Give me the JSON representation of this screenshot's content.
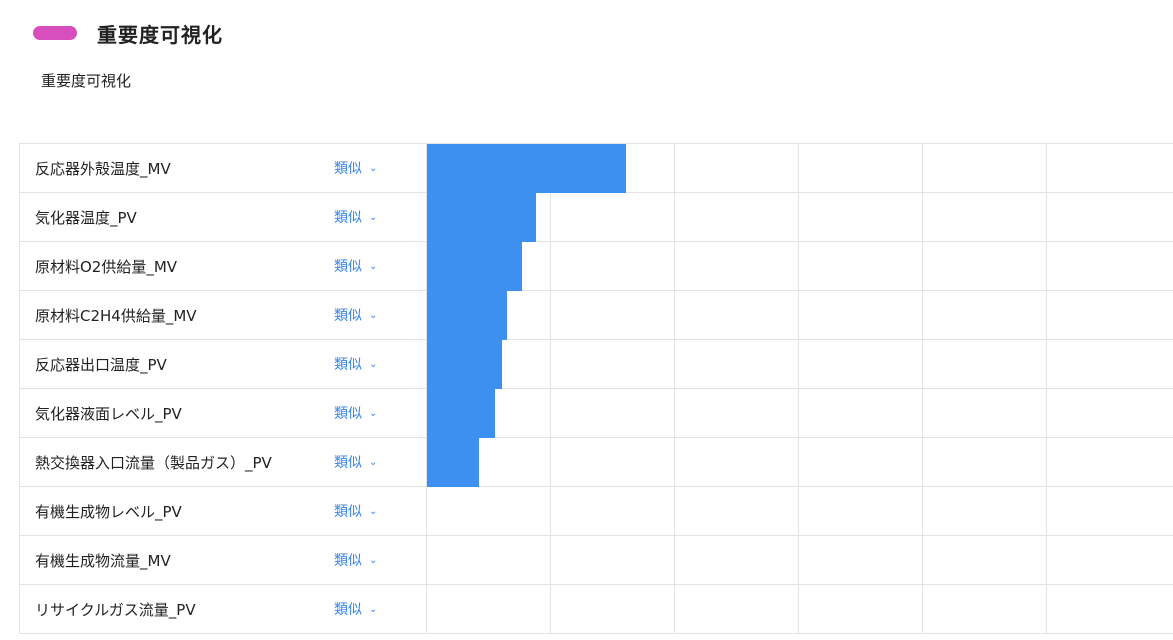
{
  "header": {
    "title": "重要度可視化",
    "accent_color": "#d64fbd"
  },
  "subtitle": "重要度可視化",
  "select_label": "類似",
  "chevron_icon": "chevron-down-icon",
  "bar_color": "#3d8ff0",
  "chart_data": {
    "type": "bar",
    "orientation": "horizontal",
    "max_scale": 1.0,
    "categories": [
      "反応器外殻温度_MV",
      "気化器温度_PV",
      "原材料O2供給量_MV",
      "原材料C2H4供給量_MV",
      "反応器出口温度_PV",
      "気化器液面レベル_PV",
      "熱交換器入口流量（製品ガス）_PV",
      "有機生成物レベル_PV",
      "有機生成物流量_MV",
      "リサイクルガス流量_PV"
    ],
    "values": [
      0.266,
      0.146,
      0.127,
      0.107,
      0.101,
      0.091,
      0.069,
      0,
      0,
      0
    ],
    "grid": true
  }
}
